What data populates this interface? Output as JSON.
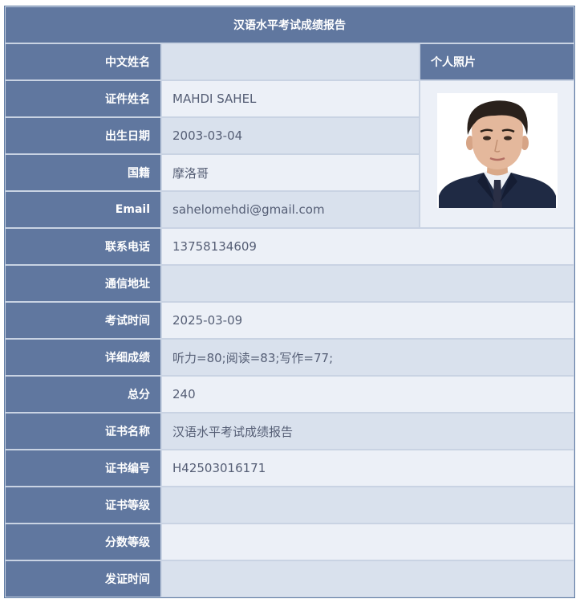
{
  "report_title": "汉语水平考试成绩报告",
  "photo_header": "个人照片",
  "fields": {
    "chinese_name": {
      "label": "中文姓名",
      "value": ""
    },
    "id_name": {
      "label": "证件姓名",
      "value": "MAHDI SAHEL"
    },
    "birth_date": {
      "label": "出生日期",
      "value": "2003-03-04"
    },
    "nationality": {
      "label": "国籍",
      "value": "摩洛哥"
    },
    "email": {
      "label": "Email",
      "value": "sahelomehdi@gmail.com"
    },
    "phone": {
      "label": "联系电话",
      "value": "13758134609"
    },
    "address": {
      "label": "通信地址",
      "value": ""
    },
    "exam_date": {
      "label": "考试时间",
      "value": "2025-03-09"
    },
    "detailed_scores": {
      "label": "详细成绩",
      "value": "听力=80;阅读=83;写作=77;"
    },
    "total_score": {
      "label": "总分",
      "value": "240"
    },
    "certificate_name": {
      "label": "证书名称",
      "value": "汉语水平考试成绩报告"
    },
    "certificate_number": {
      "label": "证书编号",
      "value": "H42503016171"
    },
    "certificate_level": {
      "label": "证书等级",
      "value": ""
    },
    "score_level": {
      "label": "分数等级",
      "value": ""
    },
    "issue_date": {
      "label": "发证时间",
      "value": ""
    }
  },
  "colors": {
    "header_blue": "#60779f",
    "row_dark": "#d9e1ed",
    "row_light": "#ecf0f7",
    "value_text": "#555e75"
  }
}
